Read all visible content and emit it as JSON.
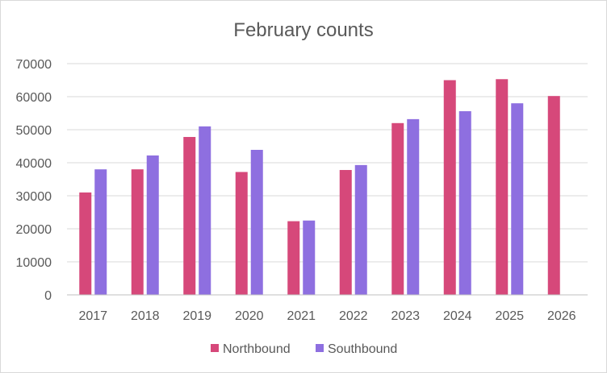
{
  "chart_data": {
    "type": "bar",
    "title": "February counts",
    "xlabel": "",
    "ylabel": "",
    "categories": [
      "2017",
      "2018",
      "2019",
      "2020",
      "2021",
      "2022",
      "2023",
      "2024",
      "2025",
      "2026"
    ],
    "series": [
      {
        "name": "Northbound",
        "color": "#d6487a",
        "values": [
          31000,
          38000,
          47800,
          37200,
          22300,
          37800,
          52000,
          65000,
          65300,
          60200
        ]
      },
      {
        "name": "Southbound",
        "color": "#8e6fe0",
        "values": [
          38000,
          42200,
          51000,
          43900,
          22500,
          39300,
          53200,
          55600,
          58000,
          null
        ]
      }
    ],
    "ylim": [
      0,
      70000
    ],
    "yticks": [
      "0",
      "10000",
      "20000",
      "30000",
      "40000",
      "50000",
      "60000",
      "70000"
    ],
    "grid": true,
    "legend": "bottom"
  }
}
